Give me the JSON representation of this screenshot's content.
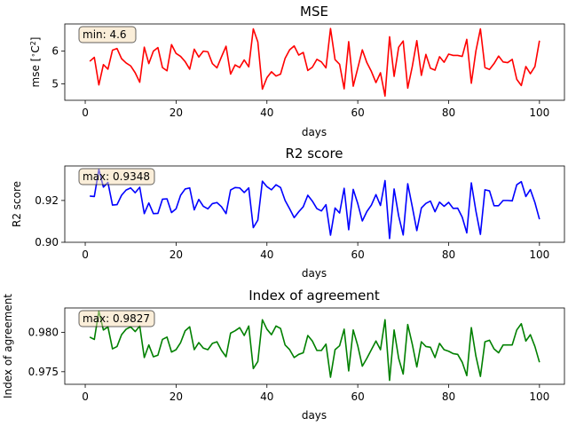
{
  "chart_data": [
    {
      "type": "line",
      "title": "MSE",
      "xlabel": "days",
      "ylabel": "mse [∘C²]",
      "ylabel_parts": {
        "prefix": "mse [",
        "sup1": "∘",
        "base": "C",
        "sup2": "2",
        "suffix": "]"
      },
      "color": "#ff0000",
      "xlim": [
        -4.5,
        105.5
      ],
      "ylim": [
        4.5,
        6.83
      ],
      "xticks": [
        0,
        20,
        40,
        60,
        80,
        100
      ],
      "yticks": [
        5,
        6
      ],
      "annotation": "min: 4.6",
      "x": [
        1,
        2,
        3,
        4,
        5,
        6,
        7,
        8,
        9,
        10,
        11,
        12,
        13,
        14,
        15,
        16,
        17,
        18,
        19,
        20,
        21,
        22,
        23,
        24,
        25,
        26,
        27,
        28,
        29,
        30,
        31,
        32,
        33,
        34,
        35,
        36,
        37,
        38,
        39,
        40,
        41,
        42,
        43,
        44,
        45,
        46,
        47,
        48,
        49,
        50,
        51,
        52,
        53,
        54,
        55,
        56,
        57,
        58,
        59,
        60,
        61,
        62,
        63,
        64,
        65,
        66,
        67,
        68,
        69,
        70,
        71,
        72,
        73,
        74,
        75,
        76,
        77,
        78,
        79,
        80,
        81,
        82,
        83,
        84,
        85,
        86,
        87,
        88,
        89,
        90,
        91,
        92,
        93,
        94,
        95,
        96,
        97,
        98,
        99,
        100
      ],
      "values": [
        5.69,
        5.81,
        4.97,
        5.59,
        5.45,
        6.03,
        6.08,
        5.77,
        5.64,
        5.55,
        5.34,
        5.05,
        6.12,
        5.62,
        6.0,
        6.11,
        5.5,
        5.4,
        6.2,
        5.93,
        5.84,
        5.68,
        5.45,
        6.06,
        5.82,
        6.0,
        5.98,
        5.62,
        5.49,
        5.83,
        6.15,
        5.3,
        5.58,
        5.5,
        5.73,
        5.52,
        6.68,
        6.28,
        4.84,
        5.19,
        5.37,
        5.24,
        5.3,
        5.78,
        6.04,
        6.16,
        5.88,
        5.96,
        5.41,
        5.51,
        5.75,
        5.67,
        5.49,
        6.69,
        5.74,
        5.6,
        4.85,
        6.29,
        4.93,
        5.48,
        6.04,
        5.65,
        5.38,
        5.04,
        5.34,
        4.63,
        6.44,
        5.23,
        6.12,
        6.31,
        4.87,
        5.53,
        6.32,
        5.26,
        5.9,
        5.48,
        5.42,
        5.83,
        5.66,
        5.91,
        5.87,
        5.87,
        5.84,
        6.36,
        5.02,
        6.0,
        6.68,
        5.5,
        5.44,
        5.62,
        5.85,
        5.67,
        5.65,
        5.75,
        5.14,
        4.95,
        5.53,
        5.31,
        5.53,
        6.32
      ]
    },
    {
      "type": "line",
      "title": "R2 score",
      "xlabel": "days",
      "ylabel": "R2 score",
      "color": "#0000ff",
      "xlim": [
        -4.5,
        105.5
      ],
      "ylim": [
        0.9,
        0.9365
      ],
      "xticks": [
        0,
        20,
        40,
        60,
        80,
        100
      ],
      "yticks": [
        0.9,
        0.92
      ],
      "ytick_labels": [
        "0.90",
        "0.92"
      ],
      "annotation": "max: 0.9348",
      "x": [
        1,
        2,
        3,
        4,
        5,
        6,
        7,
        8,
        9,
        10,
        11,
        12,
        13,
        14,
        15,
        16,
        17,
        18,
        19,
        20,
        21,
        22,
        23,
        24,
        25,
        26,
        27,
        28,
        29,
        30,
        31,
        32,
        33,
        34,
        35,
        36,
        37,
        38,
        39,
        40,
        41,
        42,
        43,
        44,
        45,
        46,
        47,
        48,
        49,
        50,
        51,
        52,
        53,
        54,
        55,
        56,
        57,
        58,
        59,
        60,
        61,
        62,
        63,
        64,
        65,
        66,
        67,
        68,
        69,
        70,
        71,
        72,
        73,
        74,
        75,
        76,
        77,
        78,
        79,
        80,
        81,
        82,
        83,
        84,
        85,
        86,
        87,
        88,
        89,
        90,
        91,
        92,
        93,
        94,
        95,
        96,
        97,
        98,
        99,
        100
      ],
      "values": [
        0.9221,
        0.9219,
        0.9348,
        0.9264,
        0.9286,
        0.9178,
        0.918,
        0.9225,
        0.925,
        0.926,
        0.9237,
        0.9263,
        0.9137,
        0.9188,
        0.9137,
        0.9138,
        0.9206,
        0.9208,
        0.9142,
        0.916,
        0.9225,
        0.9255,
        0.926,
        0.9155,
        0.9205,
        0.9172,
        0.916,
        0.9185,
        0.919,
        0.917,
        0.9137,
        0.925,
        0.9262,
        0.926,
        0.9238,
        0.926,
        0.907,
        0.9106,
        0.9292,
        0.9266,
        0.9251,
        0.9275,
        0.9262,
        0.92,
        0.916,
        0.9118,
        0.9146,
        0.917,
        0.9225,
        0.9197,
        0.9161,
        0.915,
        0.918,
        0.9034,
        0.9164,
        0.914,
        0.9258,
        0.906,
        0.9253,
        0.9185,
        0.9102,
        0.9147,
        0.9178,
        0.9228,
        0.9176,
        0.9295,
        0.9018,
        0.9255,
        0.9126,
        0.9035,
        0.928,
        0.917,
        0.9056,
        0.9164,
        0.9186,
        0.9197,
        0.9146,
        0.9192,
        0.9172,
        0.9191,
        0.9162,
        0.9163,
        0.912,
        0.9045,
        0.9284,
        0.915,
        0.9038,
        0.9251,
        0.9246,
        0.9175,
        0.9175,
        0.92,
        0.92,
        0.9198,
        0.9275,
        0.929,
        0.9219,
        0.9252,
        0.919,
        0.911
      ]
    },
    {
      "type": "line",
      "title": "Index of agreement",
      "xlabel": "days",
      "ylabel": "Index of agreement",
      "color": "#008000",
      "xlim": [
        -4.5,
        105.5
      ],
      "ylim": [
        0.9734,
        0.9831
      ],
      "xticks": [
        0,
        20,
        40,
        60,
        80,
        100
      ],
      "yticks": [
        0.975,
        0.98
      ],
      "ytick_labels": [
        "0.975",
        "0.980"
      ],
      "annotation": "max: 0.9827",
      "x": [
        1,
        2,
        3,
        4,
        5,
        6,
        7,
        8,
        9,
        10,
        11,
        12,
        13,
        14,
        15,
        16,
        17,
        18,
        19,
        20,
        21,
        22,
        23,
        24,
        25,
        26,
        27,
        28,
        29,
        30,
        31,
        32,
        33,
        34,
        35,
        36,
        37,
        38,
        39,
        40,
        41,
        42,
        43,
        44,
        45,
        46,
        47,
        48,
        49,
        50,
        51,
        52,
        53,
        54,
        55,
        56,
        57,
        58,
        59,
        60,
        61,
        62,
        63,
        64,
        65,
        66,
        67,
        68,
        69,
        70,
        71,
        72,
        73,
        74,
        75,
        76,
        77,
        78,
        79,
        80,
        81,
        82,
        83,
        84,
        85,
        86,
        87,
        88,
        89,
        90,
        91,
        92,
        93,
        94,
        95,
        96,
        97,
        98,
        99,
        100
      ],
      "values": [
        0.9794,
        0.9791,
        0.9827,
        0.9803,
        0.9807,
        0.9779,
        0.9782,
        0.9797,
        0.9804,
        0.9807,
        0.9801,
        0.9808,
        0.9768,
        0.9784,
        0.9769,
        0.9771,
        0.9791,
        0.9794,
        0.9775,
        0.9778,
        0.9787,
        0.9802,
        0.9807,
        0.9778,
        0.9787,
        0.978,
        0.9778,
        0.9786,
        0.9788,
        0.9777,
        0.9769,
        0.9799,
        0.9802,
        0.9806,
        0.9796,
        0.9808,
        0.9754,
        0.9763,
        0.9816,
        0.9804,
        0.9797,
        0.9808,
        0.9805,
        0.9784,
        0.9778,
        0.9768,
        0.9772,
        0.9774,
        0.9796,
        0.9789,
        0.9777,
        0.9777,
        0.9785,
        0.9743,
        0.9778,
        0.9783,
        0.9804,
        0.9751,
        0.9803,
        0.9783,
        0.9757,
        0.9767,
        0.9778,
        0.9789,
        0.9778,
        0.9816,
        0.9739,
        0.9803,
        0.9767,
        0.9747,
        0.981,
        0.9785,
        0.9756,
        0.9788,
        0.9782,
        0.9781,
        0.9768,
        0.9786,
        0.9778,
        0.9776,
        0.9773,
        0.9772,
        0.9762,
        0.9745,
        0.9806,
        0.977,
        0.9744,
        0.9788,
        0.979,
        0.9779,
        0.9774,
        0.9784,
        0.9784,
        0.9784,
        0.9803,
        0.9811,
        0.9789,
        0.9797,
        0.9782,
        0.9762
      ]
    }
  ]
}
